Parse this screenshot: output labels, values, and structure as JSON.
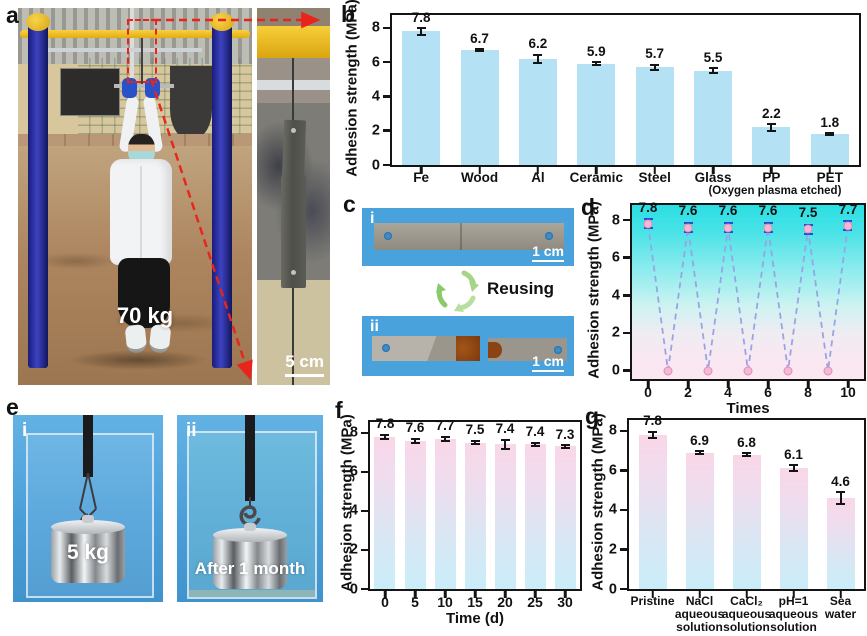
{
  "figure": {
    "panel_labels": {
      "a": "a",
      "b": "b",
      "c": "c",
      "d": "d",
      "e": "e",
      "f": "f",
      "g": "g"
    }
  },
  "panel_a": {
    "weight_label": "70 kg",
    "scale_label": "5 cm"
  },
  "panel_c": {
    "sub_i": "i",
    "sub_ii": "ii",
    "scale_i": "1 cm",
    "scale_ii": "1 cm",
    "reusing_label": "Reusing"
  },
  "panel_e": {
    "sub_i": "i",
    "sub_ii": "ii",
    "weight_label": "5 kg",
    "after_label": "After 1 month"
  },
  "colors": {
    "bar_blue": "#b5e1f5",
    "gradient_bar_top": "#f9d7e8",
    "gradient_bar_bottom": "#c9edf9",
    "zigzag_line": "#98a4e4",
    "point_fill": "#f5b8d4",
    "errorbar_blue": "#2b4bd7",
    "photo_blue": "#4aa2dc",
    "annotation_red": "#e8241c",
    "recycle_green": "#9ccc70"
  },
  "chart_data": [
    {
      "panel": "b",
      "type": "bar",
      "categories": [
        "Fe",
        "Wood",
        "Al",
        "Ceramic",
        "Steel",
        "Glass",
        "PP",
        "PET"
      ],
      "values": [
        7.8,
        6.7,
        6.2,
        5.9,
        5.7,
        5.5,
        2.2,
        1.8
      ],
      "errors": [
        0.25,
        0.1,
        0.3,
        0.15,
        0.2,
        0.2,
        0.25,
        0.1
      ],
      "footnote": "(Oxygen plasma etched)",
      "title": "",
      "xlabel": "",
      "ylabel": "Adhesion strength (MPa)",
      "yticks": [
        0,
        2,
        4,
        6,
        8
      ],
      "ylim": [
        0,
        8.75
      ],
      "grid": false
    },
    {
      "panel": "d",
      "type": "line",
      "x": [
        0,
        1,
        2,
        3,
        4,
        5,
        6,
        7,
        8,
        9,
        10
      ],
      "y": [
        7.8,
        0,
        7.6,
        0,
        7.6,
        0,
        7.6,
        0,
        7.5,
        0,
        7.7
      ],
      "peak_labels": [
        "7.8",
        "7.6",
        "7.6",
        "7.6",
        "7.5",
        "7.7"
      ],
      "error": 0.3,
      "xlabel": "Times",
      "ylabel": "Adhesion strength (MPa)",
      "xticks": [
        0,
        2,
        4,
        6,
        8,
        10
      ],
      "yticks": [
        0,
        2,
        4,
        6,
        8
      ],
      "xlim": [
        -0.8,
        10.8
      ],
      "ylim": [
        -0.45,
        8.8
      ],
      "line_style": "dashed",
      "grid": false
    },
    {
      "panel": "f",
      "type": "bar",
      "categories": [
        "0",
        "5",
        "10",
        "15",
        "20",
        "25",
        "30"
      ],
      "values": [
        7.8,
        7.6,
        7.7,
        7.5,
        7.4,
        7.4,
        7.3
      ],
      "errors": [
        0.15,
        0.15,
        0.15,
        0.15,
        0.3,
        0.15,
        0.12
      ],
      "xlabel": "Time (d)",
      "ylabel": "Adhesion strength (MPa)",
      "yticks": [
        0,
        2,
        4,
        6,
        8
      ],
      "ylim": [
        0,
        8.55
      ],
      "grid": false
    },
    {
      "panel": "g",
      "type": "bar",
      "categories": [
        "Pristine",
        "NaCl\naqueous\nsolution",
        "CaCl₂\naqueous\nsolution",
        "pH=1\naqueous\nsolution",
        "Sea\nwater"
      ],
      "values": [
        7.8,
        6.9,
        6.8,
        6.1,
        4.6
      ],
      "errors": [
        0.2,
        0.12,
        0.12,
        0.2,
        0.35
      ],
      "xlabel": "",
      "ylabel": "Adhesion strength (MPa)",
      "yticks": [
        0,
        2,
        4,
        6,
        8
      ],
      "ylim": [
        0,
        8.55
      ],
      "grid": false
    }
  ]
}
